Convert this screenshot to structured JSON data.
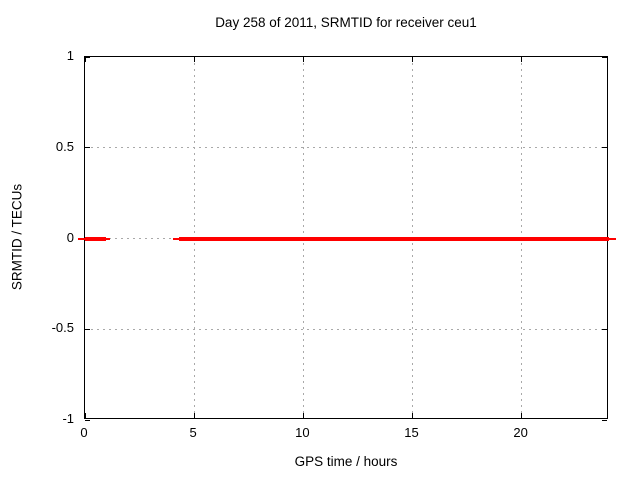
{
  "chart_data": {
    "type": "line",
    "title": "Day 258 of 2011, SRMTID for receiver ceu1",
    "xlabel": "GPS time / hours",
    "ylabel": "SRMTID / TECUs",
    "xlim": [
      0,
      24
    ],
    "ylim": [
      -1,
      1
    ],
    "x_tick_values": [
      0,
      5,
      10,
      15,
      20
    ],
    "x_tick_labels": [
      "0",
      "5",
      "10",
      "15",
      "20"
    ],
    "y_tick_values": [
      1,
      0.5,
      0,
      -0.5,
      -1
    ],
    "y_tick_labels": [
      "1",
      "0.5",
      "0",
      "-0.5",
      "-1"
    ],
    "grid": true,
    "grid_x_values": [
      5,
      10,
      15,
      20
    ],
    "grid_y_values": [
      0.5,
      0,
      -0.5
    ],
    "legend": "none",
    "series": [
      {
        "name": "SRMTID",
        "color": "#ff0000",
        "y_value": 0,
        "segments": [
          {
            "x_start": -0.3,
            "x_end": 1.15
          },
          {
            "x_start": 4.05,
            "x_end": 24.3
          }
        ],
        "draw_segments": [
          {
            "x_start": -0.3,
            "x_end": 0.0,
            "thickness_px": 2
          },
          {
            "x_start": 0.0,
            "x_end": 0.95,
            "thickness_px": 4
          },
          {
            "x_start": 0.95,
            "x_end": 1.15,
            "thickness_px": 2
          },
          {
            "x_start": 4.05,
            "x_end": 4.3,
            "thickness_px": 2
          },
          {
            "x_start": 4.3,
            "x_end": 24.0,
            "thickness_px": 4
          },
          {
            "x_start": 24.0,
            "x_end": 24.3,
            "thickness_px": 2
          }
        ]
      }
    ],
    "colors": {
      "background": "#ffffff",
      "border": "#000000",
      "grid": "#a9a9a9",
      "text": "#000000",
      "line": "#ff0000"
    }
  }
}
